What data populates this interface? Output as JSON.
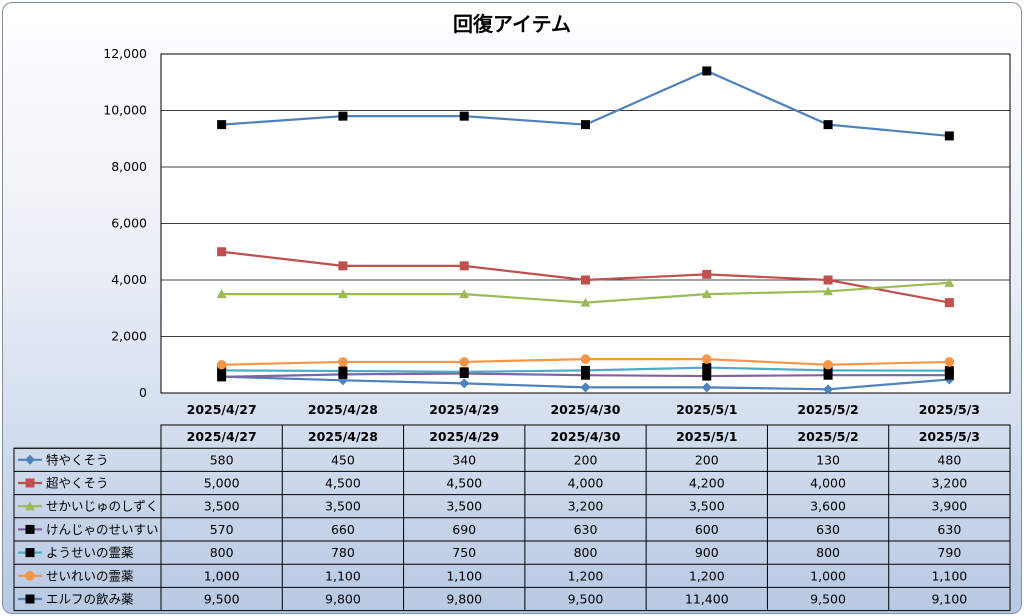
{
  "chart_data": {
    "type": "line",
    "title": "回復アイテム",
    "categories": [
      "2025/4/27",
      "2025/4/28",
      "2025/4/29",
      "2025/4/30",
      "2025/5/1",
      "2025/5/2",
      "2025/5/3"
    ],
    "y_tick_labels": [
      "0",
      "2,000",
      "4,000",
      "6,000",
      "8,000",
      "10,000",
      "12,000"
    ],
    "ylim": [
      0,
      12000
    ],
    "grid": true,
    "legend": "data-table-below",
    "series": [
      {
        "name": "特やくそう",
        "values": [
          580,
          450,
          340,
          200,
          200,
          130,
          480
        ],
        "labels": [
          "580",
          "450",
          "340",
          "200",
          "200",
          "130",
          "480"
        ],
        "color": "#4f81bd",
        "marker": "diamond"
      },
      {
        "name": "超やくそう",
        "values": [
          5000,
          4500,
          4500,
          4000,
          4200,
          4000,
          3200
        ],
        "labels": [
          "5,000",
          "4,500",
          "4,500",
          "4,000",
          "4,200",
          "4,000",
          "3,200"
        ],
        "color": "#c0504d",
        "marker": "square"
      },
      {
        "name": "せかいじゅのしずく",
        "values": [
          3500,
          3500,
          3500,
          3200,
          3500,
          3600,
          3900
        ],
        "labels": [
          "3,500",
          "3,500",
          "3,500",
          "3,200",
          "3,500",
          "3,600",
          "3,900"
        ],
        "color": "#9bbb59",
        "marker": "triangle"
      },
      {
        "name": "けんじゃのせいすい",
        "values": [
          570,
          660,
          690,
          630,
          600,
          630,
          630
        ],
        "labels": [
          "570",
          "660",
          "690",
          "630",
          "600",
          "630",
          "630"
        ],
        "color": "#8064a2",
        "marker": "blacksquare"
      },
      {
        "name": "ようせいの霊薬",
        "values": [
          800,
          780,
          750,
          800,
          900,
          800,
          790
        ],
        "labels": [
          "800",
          "780",
          "750",
          "800",
          "900",
          "800",
          "790"
        ],
        "color": "#4bacc6",
        "marker": "blacksquare"
      },
      {
        "name": "せいれいの霊薬",
        "values": [
          1000,
          1100,
          1100,
          1200,
          1200,
          1000,
          1100
        ],
        "labels": [
          "1,000",
          "1,100",
          "1,100",
          "1,200",
          "1,200",
          "1,000",
          "1,100"
        ],
        "color": "#f79646",
        "marker": "circle"
      },
      {
        "name": "エルフの飲み薬",
        "values": [
          9500,
          9800,
          9800,
          9500,
          11400,
          9500,
          9100
        ],
        "labels": [
          "9,500",
          "9,800",
          "9,800",
          "9,500",
          "11,400",
          "9,500",
          "9,100"
        ],
        "color": "#4f81bd",
        "marker": "blacksquare"
      }
    ]
  }
}
